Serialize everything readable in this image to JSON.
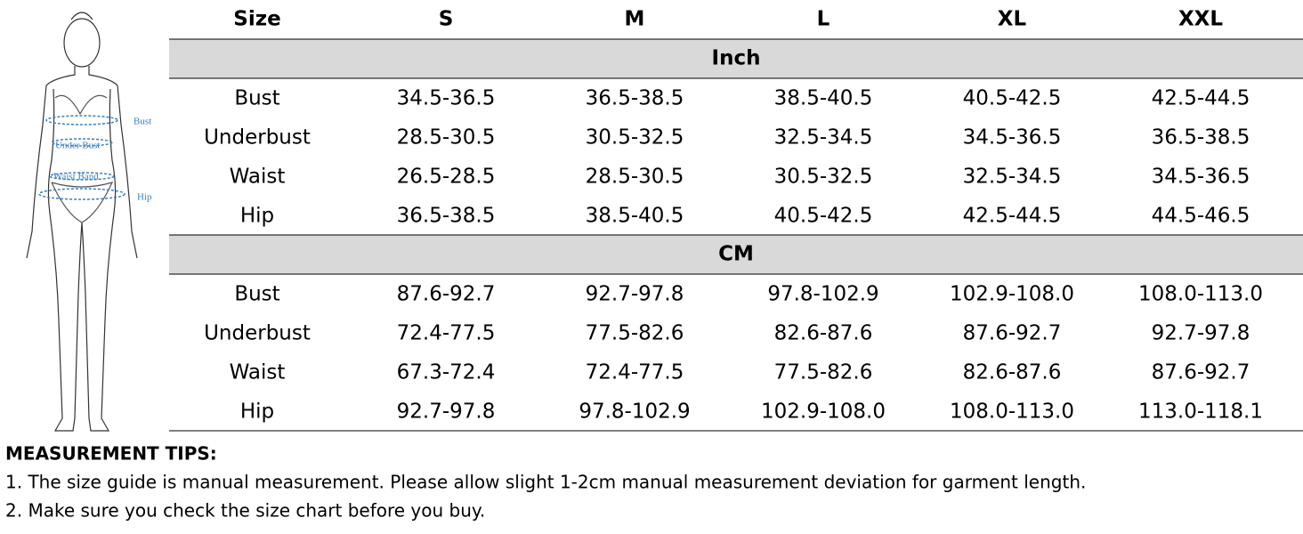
{
  "figure": {
    "labels": [
      "Bust",
      "Under Bust",
      "Waist Band",
      "Hip"
    ]
  },
  "table": {
    "header": [
      "Size",
      "S",
      "M",
      "L",
      "XL",
      "XXL"
    ],
    "sections": [
      {
        "title": "Inch",
        "rows": [
          [
            "Bust",
            "34.5-36.5",
            "36.5-38.5",
            "38.5-40.5",
            "40.5-42.5",
            "42.5-44.5"
          ],
          [
            "Underbust",
            "28.5-30.5",
            "30.5-32.5",
            "32.5-34.5",
            "34.5-36.5",
            "36.5-38.5"
          ],
          [
            "Waist",
            "26.5-28.5",
            "28.5-30.5",
            "30.5-32.5",
            "32.5-34.5",
            "34.5-36.5"
          ],
          [
            "Hip",
            "36.5-38.5",
            "38.5-40.5",
            "40.5-42.5",
            "42.5-44.5",
            "44.5-46.5"
          ]
        ]
      },
      {
        "title": "CM",
        "rows": [
          [
            "Bust",
            "87.6-92.7",
            "92.7-97.8",
            "97.8-102.9",
            "102.9-108.0",
            "108.0-113.0"
          ],
          [
            "Underbust",
            "72.4-77.5",
            "77.5-82.6",
            "82.6-87.6",
            "87.6-92.7",
            "92.7-97.8"
          ],
          [
            "Waist",
            "67.3-72.4",
            "72.4-77.5",
            "77.5-82.6",
            "82.6-87.6",
            "87.6-92.7"
          ],
          [
            "Hip",
            "92.7-97.8",
            "97.8-102.9",
            "102.9-108.0",
            "108.0-113.0",
            "113.0-118.1"
          ]
        ]
      }
    ]
  },
  "tips": {
    "title": "MEASUREMENT TIPS:",
    "items": [
      "1. The size guide is manual measurement. Please allow slight 1-2cm manual measurement deviation for garment length.",
      "2. Make sure you check the size chart before you buy."
    ]
  }
}
